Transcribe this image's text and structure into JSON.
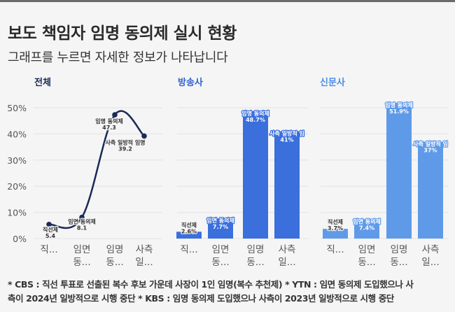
{
  "header": {
    "title": "보도 책임자 임명 동의제 실시 현황",
    "subtitle": "그래프를 누르면 자세한 정보가 나타납니다"
  },
  "colors": {
    "topbar": "#6b6b6b",
    "line": "#1b2a57",
    "broadcast_bar": "#3a6fdc",
    "newspaper_bar": "#5f9ae9",
    "title_all": "#1b2a57",
    "title_broadcast": "#2f62cf",
    "title_newspaper": "#4a8ce3",
    "grid": "#e4e4e4"
  },
  "chart_data": [
    {
      "type": "line",
      "title": "전체",
      "categories": [
        "직선제",
        "임면 동의제",
        "임명 동의제",
        "사측 일방적 임명"
      ],
      "tick_labels": [
        [
          "직..."
        ],
        [
          "임면",
          "동..."
        ],
        [
          "임명",
          "동..."
        ],
        [
          "사측",
          "일..."
        ]
      ],
      "values": [
        5.4,
        8.1,
        47.3,
        39.2
      ],
      "data_labels": [
        {
          "name": "직선제",
          "value": "5.4"
        },
        {
          "name": "임면 동의제",
          "value": "8.1"
        },
        {
          "name": "임명 동의제",
          "value": "47.3"
        },
        {
          "name": "사측 일방적 임명",
          "value": "39.2"
        }
      ],
      "ylim": [
        0,
        50
      ],
      "yticks": [
        "0%",
        "10%",
        "20%",
        "30%",
        "40%",
        "50%"
      ],
      "grid": true,
      "unit": "%"
    },
    {
      "type": "bar",
      "title": "방송사",
      "categories": [
        "직선제",
        "임면 동의제",
        "임명 동의제",
        "사측 일방적 임명"
      ],
      "tick_labels": [
        [
          "직..."
        ],
        [
          "임면",
          "동..."
        ],
        [
          "임명",
          "동..."
        ],
        [
          "사측",
          "일..."
        ]
      ],
      "values": [
        2.6,
        7.7,
        48.7,
        41
      ],
      "data_labels": [
        {
          "name": "직선제",
          "value": "2.6%"
        },
        {
          "name": "임면 동의제",
          "value": "7.7%"
        },
        {
          "name": "임명 동의제",
          "value": "48.7%"
        },
        {
          "name": "사측 일방적 임",
          "value": "41%"
        }
      ],
      "ylim": [
        0,
        50
      ],
      "grid": true,
      "unit": "%"
    },
    {
      "type": "bar",
      "title": "신문사",
      "categories": [
        "직선제",
        "임면 동의제",
        "임명 동의제",
        "사측 일방적 임명"
      ],
      "tick_labels": [
        [
          "직..."
        ],
        [
          "임면",
          "동..."
        ],
        [
          "임명",
          "동..."
        ],
        [
          "사측",
          "일..."
        ]
      ],
      "values": [
        3.7,
        7.4,
        51.9,
        37
      ],
      "data_labels": [
        {
          "name": "직선제",
          "value": "3.7%"
        },
        {
          "name": "임면 동의제",
          "value": "7.4%"
        },
        {
          "name": "임명 동의제",
          "value": "51.9%"
        },
        {
          "name": "사측 일방적 임",
          "value": "37%"
        }
      ],
      "ylim": [
        0,
        50
      ],
      "grid": true,
      "unit": "%"
    }
  ],
  "footnote": {
    "line1": "* CBS : 직선 투표로 선출된 복수 후보 가운데 사장이 1인 임명(복수 추천제) * YTN : 임면 동의제 도입했으나 사",
    "line2": "측이 2024년 일방적으로 시행 중단 * KBS : 임명 동의제 도입했으나 사측이 2023년 일방적으로 시행 중단"
  }
}
